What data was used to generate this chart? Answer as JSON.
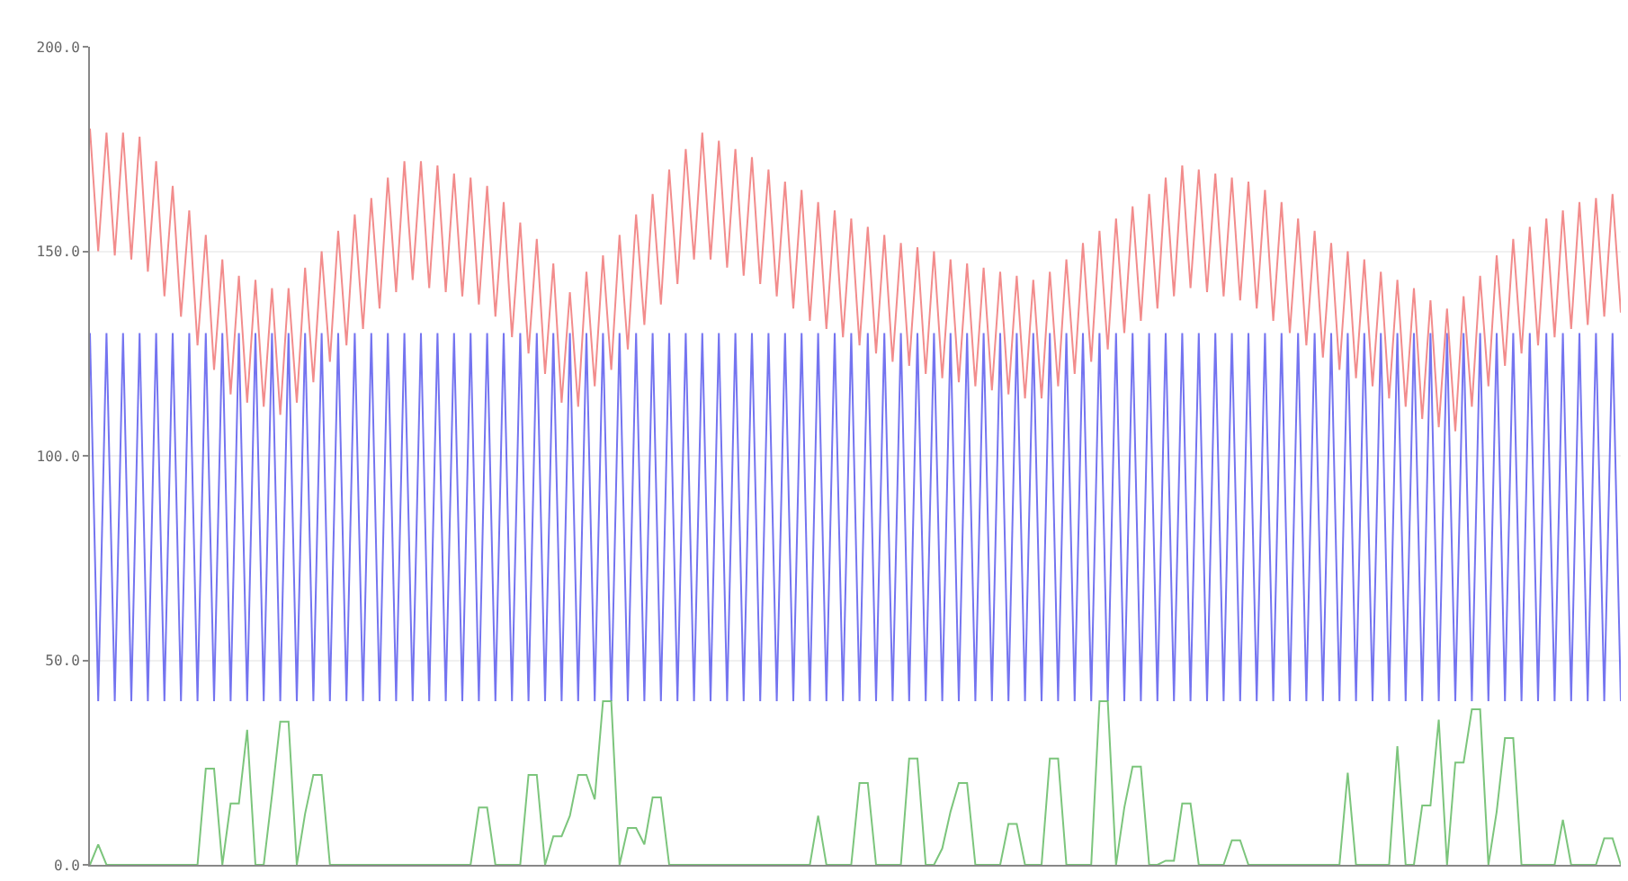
{
  "chart_data": {
    "type": "line",
    "categories": [
      null,
      null,
      null,
      null,
      null,
      null,
      null,
      null,
      null,
      null,
      null,
      null,
      null,
      null,
      null,
      null,
      null,
      null,
      null,
      null,
      null,
      null,
      null,
      null,
      null,
      null,
      null,
      null,
      null,
      null,
      null,
      null,
      null,
      null,
      null,
      null,
      null,
      null,
      null,
      null,
      null,
      null,
      null,
      null,
      null,
      null,
      null,
      null,
      null,
      null,
      null,
      null,
      null,
      null,
      null,
      null,
      null,
      null,
      null,
      null,
      null,
      null,
      null,
      null,
      null,
      null,
      null,
      null,
      null,
      null,
      null,
      null,
      null,
      null,
      null,
      null,
      null,
      null,
      null,
      null,
      null,
      null,
      null,
      null,
      null,
      null,
      null,
      null,
      null,
      null,
      null,
      null,
      null,
      null,
      null,
      null,
      null,
      null,
      null,
      null,
      null,
      null,
      null,
      null,
      null,
      null,
      null,
      null,
      null,
      null,
      null,
      null,
      null,
      null,
      null,
      null,
      null,
      null,
      null,
      null,
      null,
      null,
      null,
      null,
      null,
      null,
      null,
      null,
      null,
      null,
      null,
      null,
      null,
      null,
      null,
      null,
      null,
      null,
      null,
      null,
      null,
      null,
      null,
      null,
      null,
      null,
      null,
      null,
      null,
      null,
      null,
      null,
      null,
      null,
      null,
      null,
      null,
      null,
      null,
      null,
      null,
      null,
      null,
      null,
      null,
      null,
      null,
      null,
      null,
      null,
      null,
      null,
      null,
      null,
      null,
      null,
      null,
      null,
      null,
      null,
      null,
      null,
      null,
      null,
      null,
      null
    ],
    "series": [
      {
        "color": "#5c5cee",
        "values": [
          130,
          40,
          130,
          40,
          130,
          40,
          130,
          40,
          130,
          40,
          130,
          40,
          130,
          40,
          130,
          40,
          130,
          40,
          130,
          40,
          130,
          40,
          130,
          40,
          130,
          40,
          130,
          40,
          130,
          40,
          130,
          40,
          130,
          40,
          130,
          40,
          130,
          40,
          130,
          40,
          130,
          40,
          130,
          40,
          130,
          40,
          130,
          40,
          130,
          40,
          130,
          40,
          130,
          40,
          130,
          40,
          130,
          40,
          130,
          40,
          130,
          40,
          130,
          40,
          130,
          40,
          130,
          40,
          130,
          40,
          130,
          40,
          130,
          40,
          130,
          40,
          130,
          40,
          130,
          40,
          130,
          40,
          130,
          40,
          130,
          40,
          130,
          40,
          130,
          40,
          130,
          40,
          130,
          40,
          130,
          40,
          130,
          40,
          130,
          40,
          130,
          40,
          130,
          40,
          130,
          40,
          130,
          40,
          130,
          40,
          130,
          40,
          130,
          40,
          130,
          40,
          130,
          40,
          130,
          40,
          130,
          40,
          130,
          40,
          130,
          40,
          130,
          40,
          130,
          40,
          130,
          40,
          130,
          40,
          130,
          40,
          130,
          40,
          130,
          40,
          130,
          40,
          130,
          40,
          130,
          40,
          130,
          40,
          130,
          40,
          130,
          40,
          130,
          40,
          130,
          40,
          130,
          40,
          130,
          40,
          130,
          40,
          130,
          40,
          130,
          40,
          130,
          40,
          130,
          40,
          130,
          40,
          130,
          40,
          130,
          40,
          130,
          40,
          130,
          40,
          130,
          40,
          130,
          40,
          130,
          40
        ]
      },
      {
        "color": "#f07878",
        "values": [
          180,
          150,
          179,
          149,
          179,
          148,
          178,
          145,
          172,
          139,
          166,
          134,
          160,
          127,
          154,
          121,
          148,
          115,
          144,
          113,
          143,
          112,
          141,
          110,
          141,
          113,
          146,
          118,
          150,
          123,
          155,
          127,
          159,
          131,
          163,
          136,
          168,
          140,
          172,
          143,
          172,
          141,
          171,
          140,
          169,
          139,
          168,
          137,
          166,
          134,
          162,
          129,
          157,
          125,
          153,
          120,
          147,
          113,
          140,
          112,
          145,
          117,
          149,
          121,
          154,
          126,
          159,
          132,
          164,
          137,
          170,
          142,
          175,
          148,
          179,
          148,
          177,
          146,
          175,
          144,
          173,
          142,
          170,
          139,
          167,
          136,
          165,
          133,
          162,
          131,
          160,
          129,
          158,
          127,
          156,
          125,
          154,
          123,
          152,
          122,
          151,
          120,
          150,
          119,
          148,
          118,
          147,
          117,
          146,
          116,
          145,
          115,
          144,
          114,
          143,
          114,
          145,
          117,
          148,
          120,
          152,
          123,
          155,
          126,
          158,
          130,
          161,
          133,
          164,
          136,
          168,
          139,
          171,
          141,
          170,
          140,
          169,
          139,
          168,
          138,
          167,
          136,
          165,
          133,
          162,
          130,
          158,
          127,
          155,
          124,
          152,
          121,
          150,
          119,
          148,
          117,
          145,
          114,
          143,
          112,
          141,
          109,
          138,
          107,
          136,
          106,
          139,
          112,
          144,
          117,
          149,
          122,
          153,
          125,
          156,
          127,
          158,
          129,
          160,
          131,
          162,
          132,
          163,
          134,
          164,
          135
        ]
      },
      {
        "color": "#66bb66",
        "values": [
          0,
          5,
          0,
          0,
          0,
          0,
          0,
          0,
          0,
          0,
          0,
          0,
          0,
          0,
          23.5,
          23.5,
          0,
          15,
          15,
          33,
          0,
          0,
          17,
          35,
          35,
          0,
          12.5,
          22,
          22,
          0,
          0,
          0,
          0,
          0,
          0,
          0,
          0,
          0,
          0,
          0,
          0,
          0,
          0,
          0,
          0,
          0,
          0,
          14,
          14,
          0,
          0,
          0,
          0,
          22,
          22,
          0,
          7,
          7,
          12,
          22,
          22,
          16,
          40,
          40,
          0,
          9,
          9,
          5,
          16.5,
          16.5,
          0,
          0,
          0,
          0,
          0,
          0,
          0,
          0,
          0,
          0,
          0,
          0,
          0,
          0,
          0,
          0,
          0,
          0,
          12,
          0,
          0,
          0,
          0,
          20,
          20,
          0,
          0,
          0,
          0,
          26,
          26,
          0,
          0,
          4,
          13,
          20,
          20,
          0,
          0,
          0,
          0,
          10,
          10,
          0,
          0,
          0,
          26,
          26,
          0,
          0,
          0,
          0,
          40,
          40,
          0,
          14,
          24,
          24,
          0,
          0,
          1,
          1,
          15,
          15,
          0,
          0,
          0,
          0,
          6,
          6,
          0,
          0,
          0,
          0,
          0,
          0,
          0,
          0,
          0,
          0,
          0,
          0,
          22.5,
          0,
          0,
          0,
          0,
          0,
          29,
          0,
          0,
          14.5,
          14.5,
          35.5,
          0,
          25,
          25,
          38,
          38,
          0,
          13,
          31,
          31,
          0,
          0,
          0,
          0,
          0,
          11,
          0,
          0,
          0,
          0,
          6.5,
          6.5,
          0
        ]
      }
    ],
    "ylim": [
      0,
      200
    ],
    "yticks": [
      {
        "value": 0,
        "label": "0.0"
      },
      {
        "value": 50,
        "label": "50.0"
      },
      {
        "value": 100,
        "label": "100.0"
      },
      {
        "value": 150,
        "label": "150.0"
      },
      {
        "value": 200,
        "label": "200.0"
      }
    ],
    "tick_labels": "y",
    "grid": "y"
  }
}
